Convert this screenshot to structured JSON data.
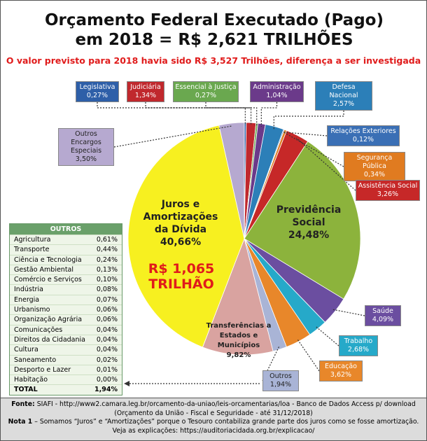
{
  "chart_data": {
    "type": "pie",
    "title": "Orçamento Federal Executado (Pago) em 2018 = R$ 2,621 TRILHÕES",
    "subtitle": "O valor previsto para 2018 havia sido R$ 3,527 Trilhões, diferença a ser investigada",
    "annotation": "R$ 1,065 TRILHÃO",
    "categories": [
      "Legislativa",
      "Judiciária",
      "Essencial à Justiça",
      "Administração",
      "Defesa Nacional",
      "Relações Exteriores",
      "Segurança Pública",
      "Assistência Social",
      "Previdência Social",
      "Saúde",
      "Trabalho",
      "Educação",
      "Outros",
      "Transferências a Estados e Municípios",
      "Juros e Amortizações da Dívida",
      "Outros Encargos Especiais"
    ],
    "values": [
      0.27,
      1.34,
      0.27,
      1.04,
      2.57,
      0.12,
      0.34,
      3.26,
      24.48,
      4.09,
      2.68,
      3.62,
      1.94,
      9.82,
      40.66,
      3.5
    ],
    "value_labels": [
      "0,27%",
      "1,34%",
      "0,27%",
      "1,04%",
      "2,57%",
      "0,12%",
      "0,34%",
      "3,26%",
      "24,48%",
      "4,09%",
      "2,68%",
      "3,62%",
      "1,94%",
      "9,82%",
      "40,66%",
      "3,50%"
    ],
    "colors": [
      "#2e5fa8",
      "#c0282d",
      "#6aa84f",
      "#6b3a8a",
      "#2c7fb8",
      "#3a6fb5",
      "#e07b20",
      "#c62828",
      "#8cb33c",
      "#6b4ea0",
      "#26a9c9",
      "#e8872a",
      "#a9b4d6",
      "#d9a3a0",
      "#f7f020",
      "#b6a9d0"
    ]
  },
  "outros_table": {
    "title": "OUTROS",
    "rows": [
      [
        "Agricultura",
        "0,61%"
      ],
      [
        "Transporte",
        "0,44%"
      ],
      [
        "Ciência e Tecnologia",
        "0,24%"
      ],
      [
        "Gestão Ambiental",
        "0,13%"
      ],
      [
        "Comércio e Serviços",
        "0,10%"
      ],
      [
        "Indústria",
        "0,08%"
      ],
      [
        "Energia",
        "0,07%"
      ],
      [
        "Urbanismo",
        "0,06%"
      ],
      [
        "Organização Agrária",
        "0,06%"
      ],
      [
        "Comunicações",
        "0,04%"
      ],
      [
        "Direitos da Cidadania",
        "0,04%"
      ],
      [
        "Cultura",
        "0,04%"
      ],
      [
        "Saneamento",
        "0,02%"
      ],
      [
        "Desporto e Lazer",
        "0,01%"
      ],
      [
        "Habitação",
        "0,00%"
      ],
      [
        "TOTAL",
        "1,94%"
      ]
    ]
  },
  "footer": {
    "source_label": "Fonte:",
    "source_text": "SIAFI - http://www2.camara.leg.br/orcamento-da-uniao/leis-orcamentarias/loa - Banco de Dados Access p/ download",
    "source_detail": "(Orçamento da União - Fiscal e Seguridade - até 31/12/2018)",
    "note_label": "Nota 1",
    "note_text": "– Somamos “Juros” e “Amortizações” porque o Tesouro contabiliza grande parte dos juros como se fosse amortização.",
    "link_text": "Veja as explicações: https://auditoriacidada.org.br/explicacao/"
  }
}
